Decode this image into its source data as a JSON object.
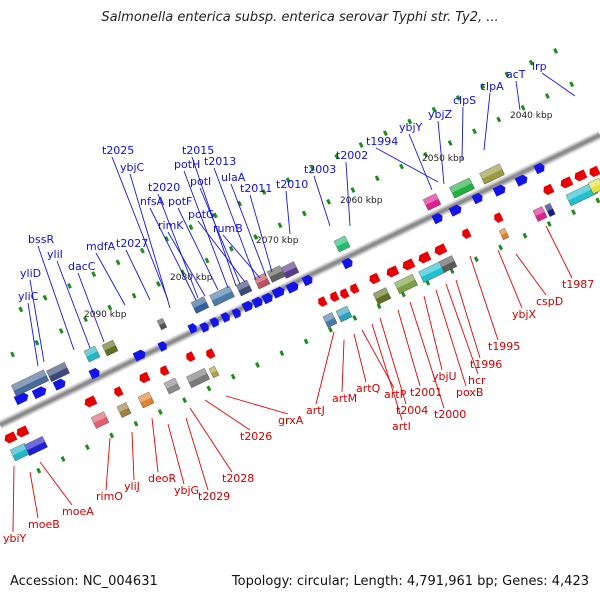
{
  "title": "Salmonella enterica subsp. enterica serovar Typhi str. Ty2, ...",
  "accession_text": "Accession: NC_004631",
  "topology_text": "Topology: circular; Length: 4,791,961 bp; Genes: 4,423",
  "colors": {
    "forward_gene": "#1414e6",
    "reverse_gene": "#e60000",
    "backbone": "#8c8c8c",
    "tick": "#1a8c1a"
  },
  "kbp_labels": [
    "2040 kbp",
    "2050 kbp",
    "2060 kbp",
    "2070 kbp",
    "2080 kbp",
    "2090 kbp"
  ],
  "genes_top": [
    "yliC",
    "yliD",
    "bssR",
    "yliI",
    "dacC",
    "mdfA",
    "t2027",
    "ybjC",
    "t2025",
    "nfsA",
    "t2020",
    "rimK",
    "potF",
    "potH",
    "t2015",
    "potI",
    "potG",
    "t2013",
    "rumB",
    "ulaA",
    "t2011",
    "t2010",
    "t2003",
    "t2002",
    "t1994",
    "ybjY",
    "ybjZ",
    "clpS",
    "clpA",
    "acT",
    "lrp"
  ],
  "genes_bottom": [
    "ybiY",
    "moeB",
    "moeA",
    "rimO",
    "yliJ",
    "deoR",
    "ybjG",
    "t2029",
    "t2028",
    "t2026",
    "grxA",
    "artJ",
    "artM",
    "artQ",
    "artP",
    "artI",
    "t2004",
    "t2001",
    "t2000",
    "ybjU",
    "poxB",
    "hcr",
    "t1996",
    "t1995",
    "ybjX",
    "cspD",
    "t1987"
  ]
}
